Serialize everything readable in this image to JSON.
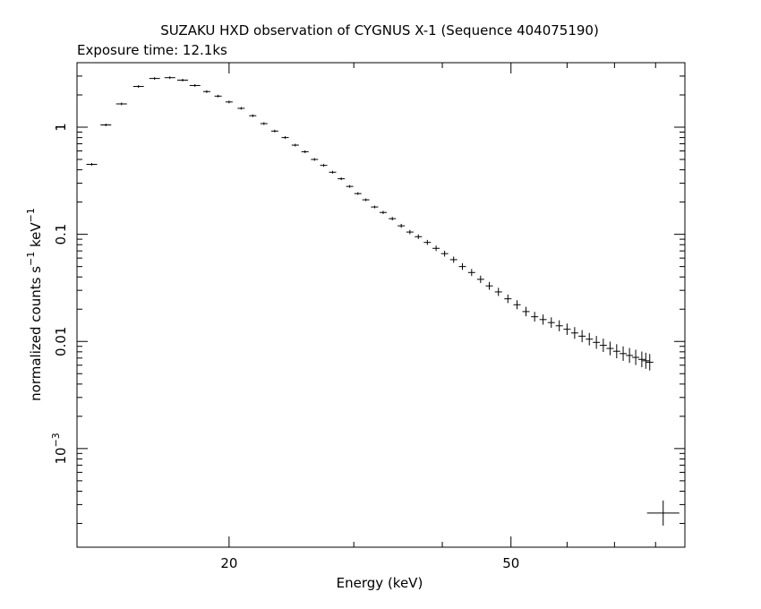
{
  "title": "SUZAKU HXD observation of CYGNUS X-1 (Sequence 404075190)",
  "subtitle": "Exposure time: 12.1ks",
  "chart_data": {
    "type": "scatter",
    "xlabel": "Energy (keV)",
    "ylabel": "normalized counts s",
    "ylabel_sup1": "−1",
    "ylabel_unit": " keV",
    "ylabel_sup2": "−1",
    "x_scale": "log",
    "y_scale": "log",
    "xlim": [
      12.2,
      88
    ],
    "ylim": [
      0.00012,
      4.0
    ],
    "grid": false,
    "x_ticks": [
      {
        "value": 20,
        "label": "20"
      },
      {
        "value": 50,
        "label": "50"
      }
    ],
    "y_ticks": [
      {
        "value": 1,
        "label": "1"
      },
      {
        "value": 0.1,
        "label": "0.1"
      },
      {
        "value": 0.01,
        "label": "0.01"
      },
      {
        "value": 0.001,
        "label": "10",
        "exp": "−3"
      }
    ],
    "series": [
      {
        "x": [
          12.8,
          13.4,
          14.1,
          14.9,
          15.7,
          16.5,
          17.2,
          17.9,
          18.6,
          19.3,
          20.0,
          20.8,
          21.6,
          22.4,
          23.2,
          24.0,
          24.8,
          25.6,
          26.4,
          27.2,
          28.0,
          28.8,
          29.6,
          30.4,
          31.2,
          32.1,
          33.0,
          34.0,
          35.0,
          36.0,
          37.0,
          38.1,
          39.2,
          40.3,
          41.5,
          42.7,
          44.0,
          45.3,
          46.6,
          48.0,
          49.5,
          51.0,
          52.5,
          54.0,
          55.5,
          57.0,
          58.5,
          60.0,
          61.5,
          63.0,
          64.5,
          66.0,
          67.5,
          69.0,
          70.5,
          72.0,
          73.5,
          75.0,
          76.5,
          77.5,
          78.5
        ],
        "y": [
          0.45,
          1.05,
          1.65,
          2.4,
          2.85,
          2.9,
          2.75,
          2.45,
          2.15,
          1.95,
          1.72,
          1.5,
          1.28,
          1.08,
          0.92,
          0.8,
          0.68,
          0.59,
          0.5,
          0.44,
          0.38,
          0.33,
          0.28,
          0.24,
          0.21,
          0.18,
          0.16,
          0.14,
          0.12,
          0.105,
          0.095,
          0.084,
          0.074,
          0.066,
          0.058,
          0.05,
          0.044,
          0.038,
          0.033,
          0.029,
          0.025,
          0.022,
          0.019,
          0.017,
          0.016,
          0.015,
          0.014,
          0.013,
          0.012,
          0.0112,
          0.0105,
          0.0098,
          0.0092,
          0.0086,
          0.0081,
          0.0077,
          0.0074,
          0.0071,
          0.0068,
          0.0066,
          0.0064
        ]
      },
      {
        "x": [
          82.0
        ],
        "y": [
          0.00025
        ]
      }
    ]
  }
}
